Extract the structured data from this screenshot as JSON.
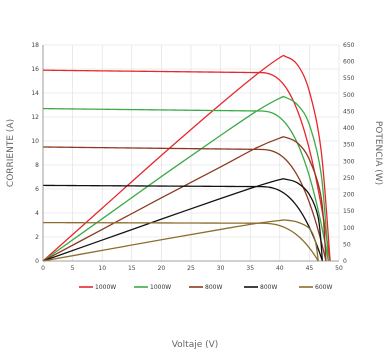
{
  "chart_data": {
    "type": "line",
    "title": "",
    "xlabel": "Voltaje (V)",
    "ylabel_left": "CORRIENTE (A)",
    "ylabel_right": "POTENCIA (W)",
    "xlim": [
      0,
      50
    ],
    "ylim_left": [
      0,
      18
    ],
    "ylim_right": [
      0,
      650
    ],
    "xticks": [
      "0",
      "5",
      "10",
      "15",
      "20",
      "25",
      "30",
      "35",
      "40",
      "45",
      "50"
    ],
    "yticks_left": [
      "0",
      "2",
      "4",
      "6",
      "8",
      "10",
      "12",
      "14",
      "16",
      "18"
    ],
    "yticks_right": [
      "0",
      "50",
      "100",
      "150",
      "200",
      "250",
      "300",
      "350",
      "400",
      "450",
      "500",
      "550",
      "600",
      "650"
    ],
    "grid": true,
    "legend_position": "bottom",
    "series": [
      {
        "name": "1000W",
        "color": "#e8262c",
        "current": {
          "isc": 15.9,
          "voc": 48.5,
          "knee_v": 36.5,
          "imp": 15.7
        },
        "power": {
          "points": [
            [
              0,
              0
            ],
            [
              10,
              159
            ],
            [
              20,
              318
            ],
            [
              30,
              472
            ],
            [
              36,
              560
            ],
            [
              40,
              612
            ],
            [
              41,
              615
            ],
            [
              43,
              590
            ],
            [
              45,
              510
            ],
            [
              47,
              330
            ],
            [
              48.5,
              0
            ]
          ]
        }
      },
      {
        "name": "1000W",
        "color": "#3daa47",
        "current": {
          "isc": 12.7,
          "voc": 48.2,
          "knee_v": 36.5,
          "imp": 12.5
        },
        "power": {
          "points": [
            [
              0,
              0
            ],
            [
              10,
              127
            ],
            [
              20,
              254
            ],
            [
              30,
              378
            ],
            [
              36,
              450
            ],
            [
              40,
              490
            ],
            [
              41,
              492
            ],
            [
              43,
              470
            ],
            [
              45,
              410
            ],
            [
              47,
              260
            ],
            [
              48.2,
              0
            ]
          ]
        }
      },
      {
        "name": "800W",
        "color": "#8b3a22",
        "current": {
          "isc": 9.5,
          "voc": 47.8,
          "knee_v": 36.5,
          "imp": 9.3
        },
        "power": {
          "points": [
            [
              0,
              0
            ],
            [
              10,
              95
            ],
            [
              20,
              190
            ],
            [
              30,
              283
            ],
            [
              36,
              340
            ],
            [
              40,
              370
            ],
            [
              41,
              372
            ],
            [
              43,
              355
            ],
            [
              45,
              305
            ],
            [
              47,
              190
            ],
            [
              47.8,
              0
            ]
          ]
        }
      },
      {
        "name": "800W",
        "color": "#111111",
        "current": {
          "isc": 6.3,
          "voc": 47.2,
          "knee_v": 36.5,
          "imp": 6.2
        },
        "power": {
          "points": [
            [
              0,
              0
            ],
            [
              10,
              63
            ],
            [
              20,
              126
            ],
            [
              30,
              188
            ],
            [
              36,
              224
            ],
            [
              40,
              245
            ],
            [
              41,
              246
            ],
            [
              43,
              235
            ],
            [
              45,
              200
            ],
            [
              46.5,
              130
            ],
            [
              47.2,
              0
            ]
          ]
        }
      },
      {
        "name": "600W",
        "color": "#8c6d2c",
        "current": {
          "isc": 3.2,
          "voc": 46.5,
          "knee_v": 36.5,
          "imp": 3.15
        },
        "power": {
          "points": [
            [
              0,
              0
            ],
            [
              10,
              32
            ],
            [
              20,
              64
            ],
            [
              30,
              95
            ],
            [
              36,
              113
            ],
            [
              40,
              122
            ],
            [
              41,
              123
            ],
            [
              43,
              117
            ],
            [
              45,
              98
            ],
            [
              46,
              60
            ],
            [
              46.5,
              0
            ]
          ]
        }
      }
    ]
  }
}
